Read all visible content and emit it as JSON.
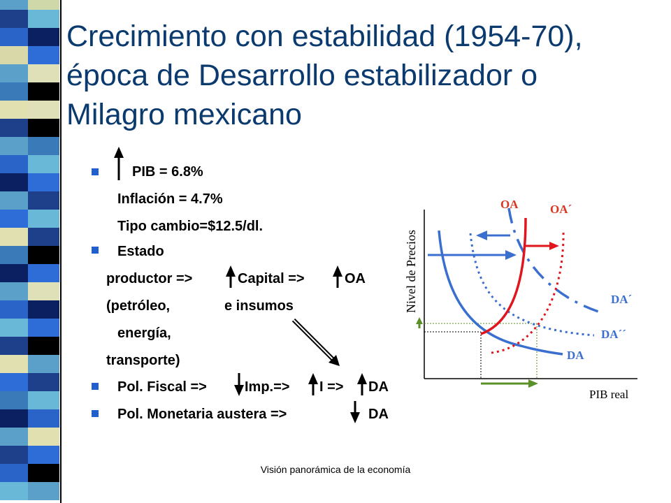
{
  "slide": {
    "title_lines": [
      "Crecimiento con estabilidad (1954-70),",
      "época de Desarrollo estabilizador o",
      "Milagro mexicano"
    ],
    "bullets": {
      "pib": "PIB = 6.8%",
      "inflacion": "Inflación = 4.7%",
      "tipo_cambio": "Tipo cambio=$12.5/dl.",
      "estado": "Estado",
      "productor": "productor =>",
      "capital": "Capital =>",
      "oa": "OA",
      "petroleo": "(petróleo,",
      "insumos": "e insumos",
      "energia": "energía,",
      "transporte": "transporte)",
      "pol_fiscal": "Pol. Fiscal =>",
      "imp": "Imp.=>",
      "i": "I =>",
      "da": "DA",
      "pol_monetaria": "Pol. Monetaria austera =>",
      "da2": "DA"
    },
    "footer": "Visión panorámica de la economía"
  },
  "graph": {
    "ylabel": "Nivel de Precios",
    "xlabel": "PIB real",
    "labels": {
      "oa": "OA",
      "oa_prime": "OA´",
      "da_prime": "DA´",
      "da_dprime": "DA´´",
      "da": "DA"
    }
  },
  "colors": {
    "title": "#0b3a6e",
    "bullet": "#1f5fd0",
    "curve_blue": "#3a6fd0",
    "curve_red": "#e0161f",
    "shift_green": "#5a8f2a",
    "label_red": "#d9361f",
    "label_blue": "#3a6fd0"
  }
}
